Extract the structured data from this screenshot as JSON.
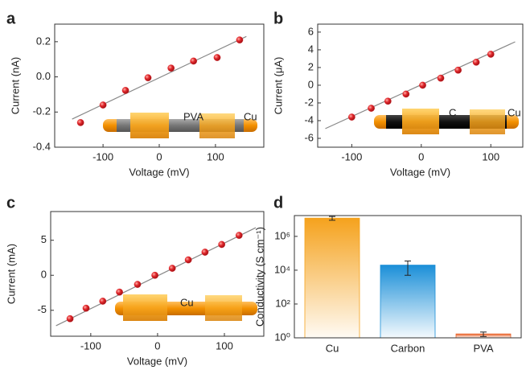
{
  "chart_data": [
    {
      "type": "scatter",
      "label": "a",
      "x_label": "Voltage (mV)",
      "y_label": "Current (nA)",
      "annotations": [
        "PVA",
        "Cu"
      ],
      "xlim": [
        -186,
        186
      ],
      "ylim": [
        -0.4,
        0.3
      ],
      "xticks": [
        -100,
        0,
        100
      ],
      "yticks": [
        -0.4,
        -0.2,
        {
          "value": 0,
          "label": "0.0"
        },
        0.2
      ],
      "series": [
        {
          "color": "#e0262b",
          "x": [
            -140,
            -100,
            -60,
            -20,
            21,
            61,
            103,
            143
          ],
          "values": [
            -0.26,
            -0.16,
            -0.077,
            -0.005,
            0.05,
            0.09,
            0.11,
            0.21
          ]
        }
      ],
      "fit_line": {
        "color": "#888888",
        "x": [
          -155,
          155
        ],
        "values": [
          -0.24,
          0.23
        ]
      }
    },
    {
      "type": "scatter",
      "label": "b",
      "x_label": "Voltage (mV)",
      "y_label": "Current (μA)",
      "annotations": [
        "C",
        "Cu"
      ],
      "xlim": [
        -149,
        146
      ],
      "ylim": [
        -7,
        6.9
      ],
      "xticks": [
        -100,
        0,
        100
      ],
      "yticks": [
        -6,
        -4,
        -2,
        0,
        2,
        4,
        6
      ],
      "series": [
        {
          "color": "#e0262b",
          "x": [
            -100,
            -72,
            -48,
            -22,
            2,
            28,
            53,
            79,
            100
          ],
          "values": [
            -3.6,
            -2.6,
            -1.8,
            -1.0,
            0,
            0.8,
            1.7,
            2.6,
            3.5
          ]
        }
      ],
      "fit_line": {
        "color": "#888888",
        "x": [
          -138,
          135
        ],
        "values": [
          -4.9,
          4.9
        ]
      }
    },
    {
      "type": "scatter",
      "label": "c",
      "x_label": "Voltage (mV)",
      "y_label": "Current (mA)",
      "annotations": [
        "Cu"
      ],
      "xlim": [
        -160,
        159
      ],
      "ylim": [
        -8.7,
        9.1
      ],
      "xticks": [
        -100,
        0,
        100
      ],
      "yticks": [
        -5,
        0,
        5
      ],
      "series": [
        {
          "color": "#e0262b",
          "x": [
            -131,
            -107,
            -82,
            -57,
            -30,
            -4,
            22,
            46,
            71,
            96,
            122
          ],
          "values": [
            -6.2,
            -4.7,
            -3.7,
            -2.4,
            -1.3,
            0,
            1.0,
            2.2,
            3.3,
            4.4,
            5.7
          ]
        }
      ],
      "fit_line": {
        "color": "#888888",
        "x": [
          -152,
          147
        ],
        "values": [
          -7.2,
          6.8
        ]
      }
    },
    {
      "type": "bar",
      "label": "d",
      "y_label": "Conductivity (S cm⁻¹)",
      "log_scale": true,
      "categories": [
        "Cu",
        "Carbon",
        "PVA"
      ],
      "values": [
        12000000,
        20000,
        1.7
      ],
      "errors": [
        3000000,
        15000,
        0.5
      ],
      "colors": [
        "#f5a21d",
        "#1b8fd8",
        "#e8622a"
      ],
      "ylim": [
        1,
        17000000
      ],
      "yticks": [
        {
          "value": 1,
          "label": "10⁰"
        },
        {
          "value": 100,
          "label": "10²"
        },
        {
          "value": 10000,
          "label": "10⁴"
        },
        {
          "value": 1000000,
          "label": "10⁶"
        }
      ]
    }
  ]
}
